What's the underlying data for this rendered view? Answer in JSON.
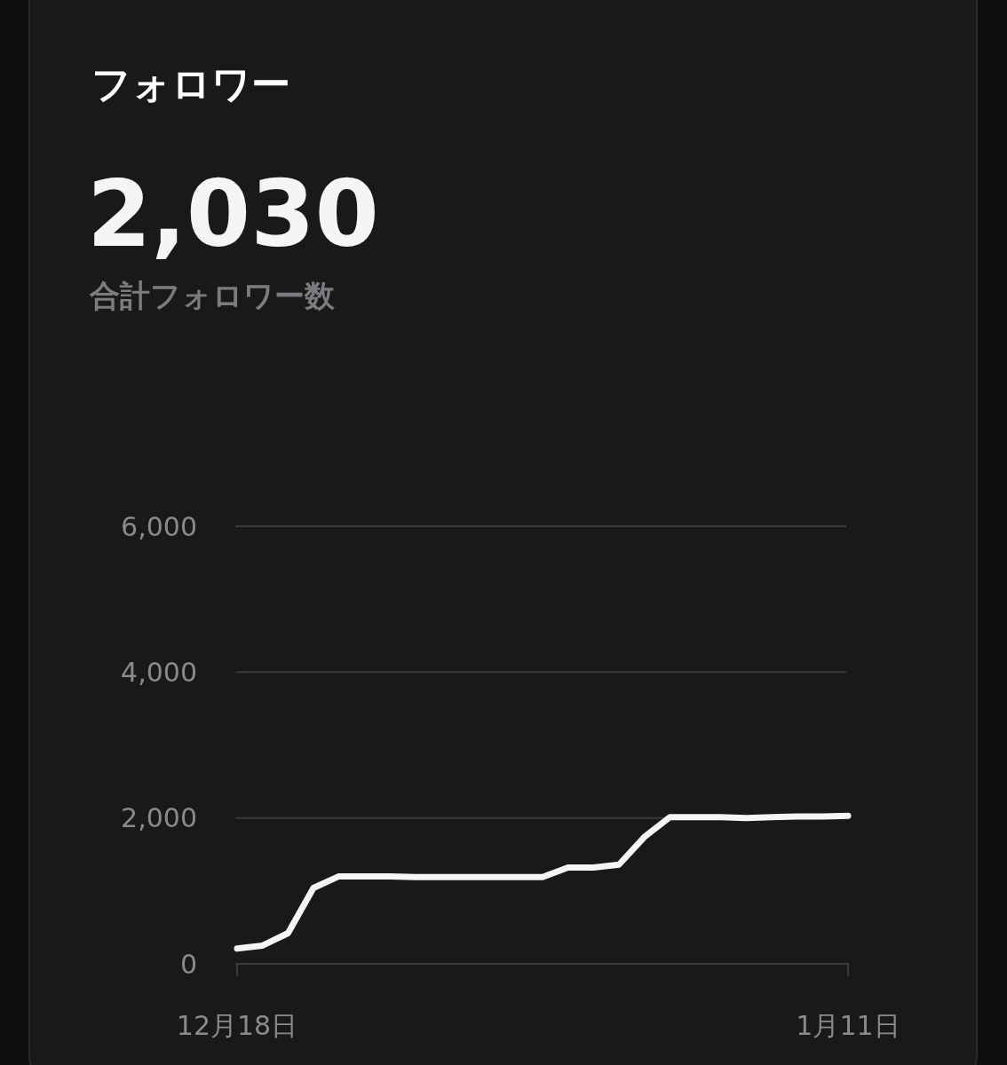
{
  "chart_data": {
    "type": "line",
    "title": "フォロワー",
    "subtitle": "2,030",
    "annotations": [
      "合計フォロワー数"
    ],
    "categories": [
      "12月18日",
      null,
      null,
      null,
      null,
      null,
      null,
      null,
      null,
      null,
      null,
      null,
      null,
      null,
      null,
      null,
      null,
      null,
      null,
      null,
      null,
      null,
      null,
      null,
      "1月11日"
    ],
    "series": [
      {
        "color": "#f5f5f7",
        "values": [
          210,
          250,
          420,
          1040,
          1200,
          1200,
          1200,
          1190,
          1190,
          1190,
          1190,
          1190,
          1190,
          1320,
          1320,
          1360,
          1740,
          2010,
          2010,
          2010,
          2000,
          2010,
          2020,
          2020,
          2030
        ]
      }
    ],
    "ylim": [
      0,
      6000
    ],
    "yticks": [
      0,
      {
        "value": 2000,
        "label": "2,000"
      },
      {
        "value": 4000,
        "label": "4,000"
      },
      {
        "value": 6000,
        "label": "6,000"
      }
    ],
    "grid": "y"
  }
}
